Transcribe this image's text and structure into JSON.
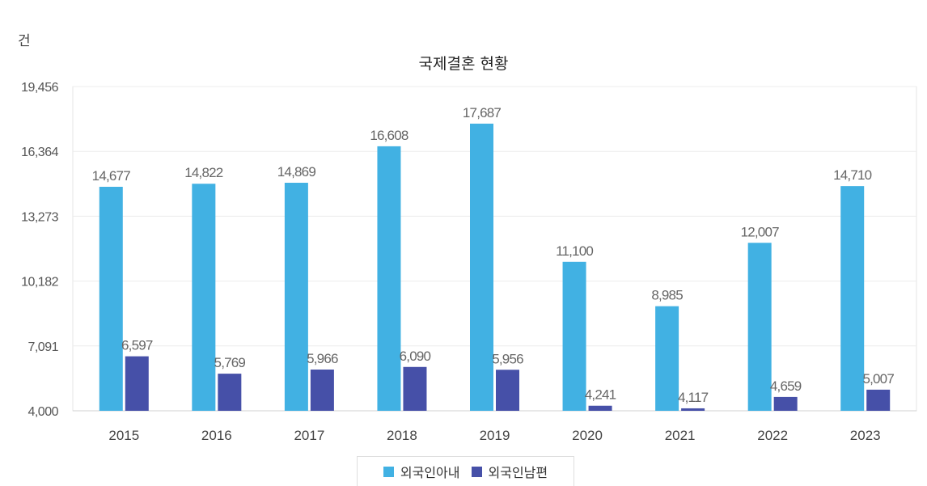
{
  "chart_data": {
    "type": "bar",
    "title": "국제결혼 현황",
    "unit_label": "건",
    "categories": [
      "2015",
      "2016",
      "2017",
      "2018",
      "2019",
      "2020",
      "2021",
      "2022",
      "2023"
    ],
    "series": [
      {
        "name": "외국인아내",
        "color": "#41b1e3",
        "values": [
          14677,
          14822,
          14869,
          16608,
          17687,
          11100,
          8985,
          12007,
          14710
        ],
        "labels": [
          "14,677",
          "14,822",
          "14,869",
          "16,608",
          "17,687",
          "11,100",
          "8,985",
          "12,007",
          "14,710"
        ]
      },
      {
        "name": "외국인남편",
        "color": "#4650a8",
        "values": [
          6597,
          5769,
          5966,
          6090,
          5956,
          4241,
          4117,
          4659,
          5007
        ],
        "labels": [
          "6,597",
          "5,769",
          "5,966",
          "6,090",
          "5,956",
          "4,241",
          "4,117",
          "4,659",
          "5,007"
        ]
      }
    ],
    "yticks": [
      4000,
      7091,
      10182,
      13273,
      16364,
      19456
    ],
    "ytick_labels": [
      "4,000",
      "7,091",
      "10,182",
      "13,273",
      "16,364",
      "19,456"
    ],
    "ylim": [
      4000,
      19456
    ],
    "grid": true,
    "legend_position": "bottom-center"
  }
}
